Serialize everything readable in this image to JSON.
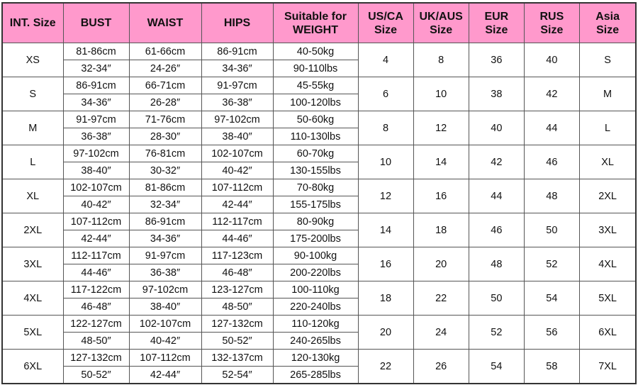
{
  "colors": {
    "header_bg": "#ff99cc",
    "border": "#555555"
  },
  "headers": [
    "INT. Size",
    "BUST",
    "WAIST",
    "HIPS",
    "Suitable for WEIGHT",
    "US/CA Size",
    "UK/AUS Size",
    "EUR Size",
    "RUS Size",
    "Asia Size"
  ],
  "rows": [
    {
      "int": "XS",
      "bust_cm": "81-86cm",
      "bust_in": "32-34″",
      "waist_cm": "61-66cm",
      "waist_in": "24-26″",
      "hips_cm": "86-91cm",
      "hips_in": "34-36″",
      "kg": "40-50kg",
      "lbs": "90-110lbs",
      "us": "4",
      "uk": "8",
      "eur": "36",
      "rus": "40",
      "asia": "S"
    },
    {
      "int": "S",
      "bust_cm": "86-91cm",
      "bust_in": "34-36″",
      "waist_cm": "66-71cm",
      "waist_in": "26-28″",
      "hips_cm": "91-97cm",
      "hips_in": "36-38″",
      "kg": "45-55kg",
      "lbs": "100-120lbs",
      "us": "6",
      "uk": "10",
      "eur": "38",
      "rus": "42",
      "asia": "M"
    },
    {
      "int": "M",
      "bust_cm": "91-97cm",
      "bust_in": "36-38″",
      "waist_cm": "71-76cm",
      "waist_in": "28-30″",
      "hips_cm": "97-102cm",
      "hips_in": "38-40″",
      "kg": "50-60kg",
      "lbs": "110-130lbs",
      "us": "8",
      "uk": "12",
      "eur": "40",
      "rus": "44",
      "asia": "L"
    },
    {
      "int": "L",
      "bust_cm": "97-102cm",
      "bust_in": "38-40″",
      "waist_cm": "76-81cm",
      "waist_in": "30-32″",
      "hips_cm": "102-107cm",
      "hips_in": "40-42″",
      "kg": "60-70kg",
      "lbs": "130-155lbs",
      "us": "10",
      "uk": "14",
      "eur": "42",
      "rus": "46",
      "asia": "XL"
    },
    {
      "int": "XL",
      "bust_cm": "102-107cm",
      "bust_in": "40-42″",
      "waist_cm": "81-86cm",
      "waist_in": "32-34″",
      "hips_cm": "107-112cm",
      "hips_in": "42-44″",
      "kg": "70-80kg",
      "lbs": "155-175lbs",
      "us": "12",
      "uk": "16",
      "eur": "44",
      "rus": "48",
      "asia": "2XL"
    },
    {
      "int": "2XL",
      "bust_cm": "107-112cm",
      "bust_in": "42-44″",
      "waist_cm": "86-91cm",
      "waist_in": "34-36″",
      "hips_cm": "112-117cm",
      "hips_in": "44-46″",
      "kg": "80-90kg",
      "lbs": "175-200lbs",
      "us": "14",
      "uk": "18",
      "eur": "46",
      "rus": "50",
      "asia": "3XL"
    },
    {
      "int": "3XL",
      "bust_cm": "112-117cm",
      "bust_in": "44-46″",
      "waist_cm": "91-97cm",
      "waist_in": "36-38″",
      "hips_cm": "117-123cm",
      "hips_in": "46-48″",
      "kg": "90-100kg",
      "lbs": "200-220lbs",
      "us": "16",
      "uk": "20",
      "eur": "48",
      "rus": "52",
      "asia": "4XL"
    },
    {
      "int": "4XL",
      "bust_cm": "117-122cm",
      "bust_in": "46-48″",
      "waist_cm": "97-102cm",
      "waist_in": "38-40″",
      "hips_cm": "123-127cm",
      "hips_in": "48-50″",
      "kg": "100-110kg",
      "lbs": "220-240lbs",
      "us": "18",
      "uk": "22",
      "eur": "50",
      "rus": "54",
      "asia": "5XL"
    },
    {
      "int": "5XL",
      "bust_cm": "122-127cm",
      "bust_in": "48-50″",
      "waist_cm": "102-107cm",
      "waist_in": "40-42″",
      "hips_cm": "127-132cm",
      "hips_in": "50-52″",
      "kg": "110-120kg",
      "lbs": "240-265lbs",
      "us": "20",
      "uk": "24",
      "eur": "52",
      "rus": "56",
      "asia": "6XL"
    },
    {
      "int": "6XL",
      "bust_cm": "127-132cm",
      "bust_in": "50-52″",
      "waist_cm": "107-112cm",
      "waist_in": "42-44″",
      "hips_cm": "132-137cm",
      "hips_in": "52-54″",
      "kg": "120-130kg",
      "lbs": "265-285lbs",
      "us": "22",
      "uk": "26",
      "eur": "54",
      "rus": "58",
      "asia": "7XL"
    }
  ]
}
